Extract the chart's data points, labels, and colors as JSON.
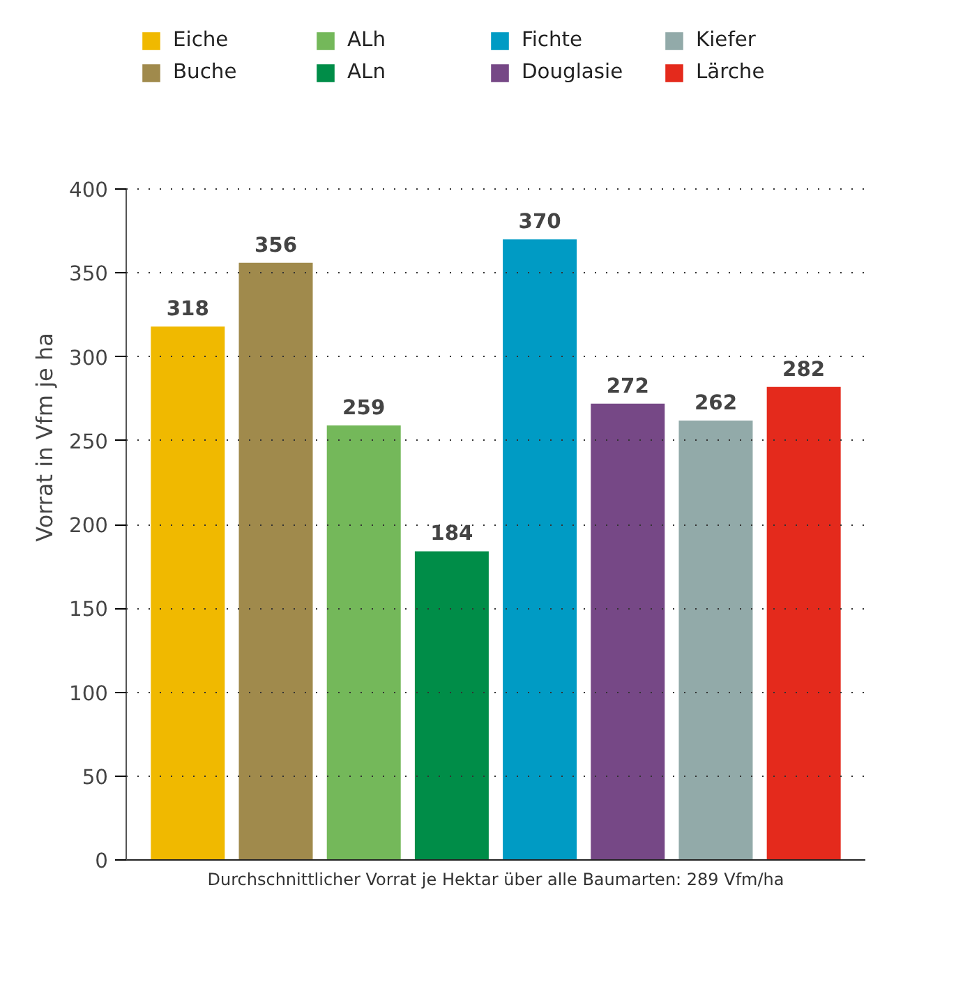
{
  "chart_data": {
    "type": "bar",
    "categories": [
      null,
      null,
      null,
      null,
      null,
      null,
      null,
      null
    ],
    "series": [
      {
        "name": "Eiche",
        "color": "#f0b900",
        "values": [
          318,
          null,
          null,
          null,
          null,
          null,
          null,
          null
        ]
      },
      {
        "name": "Buche",
        "color": "#a08a4c",
        "values": [
          null,
          356,
          null,
          null,
          null,
          null,
          null,
          null
        ]
      },
      {
        "name": "ALh",
        "color": "#74b85a",
        "values": [
          null,
          null,
          259,
          null,
          null,
          null,
          null,
          null
        ]
      },
      {
        "name": "ALn",
        "color": "#008d48",
        "values": [
          null,
          null,
          null,
          184,
          null,
          null,
          null,
          null
        ]
      },
      {
        "name": "Fichte",
        "color": "#009bc4",
        "values": [
          null,
          null,
          null,
          null,
          370,
          null,
          null,
          null
        ]
      },
      {
        "name": "Douglasie",
        "color": "#764886",
        "values": [
          null,
          null,
          null,
          null,
          null,
          272,
          null,
          null
        ]
      },
      {
        "name": "Kiefer",
        "color": "#92aaa9",
        "values": [
          null,
          null,
          null,
          null,
          null,
          null,
          262,
          null
        ]
      },
      {
        "name": "Lärche",
        "color": "#e42a1c",
        "values": [
          null,
          null,
          null,
          null,
          null,
          null,
          null,
          282
        ]
      }
    ],
    "ylabel": "Vorrat in Vfm je ha",
    "ylim": [
      0,
      400
    ],
    "yticks": [
      0,
      50,
      100,
      150,
      200,
      250,
      300,
      350,
      400
    ],
    "grid": "y",
    "legend": "top left",
    "tick_labels": "y",
    "data_labels": true,
    "annotations": [
      "Durchschnittlicher Vorrat je Hektar über alle Baumarten: 289 Vfm/ha"
    ]
  }
}
